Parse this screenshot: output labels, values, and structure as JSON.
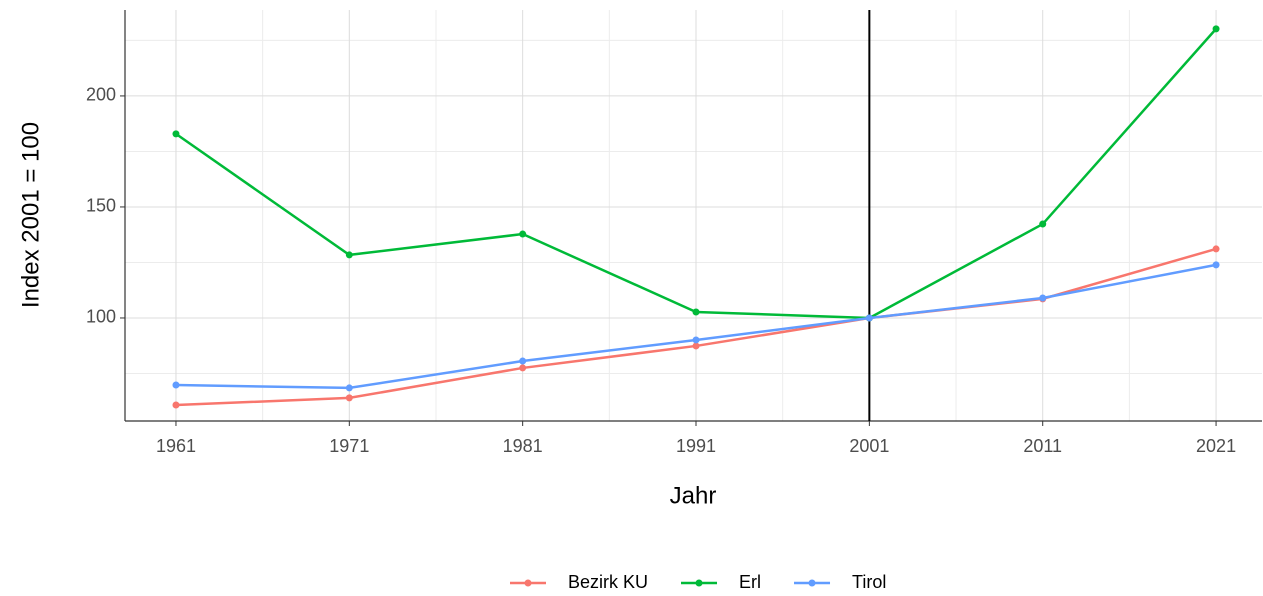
{
  "chart_data": {
    "type": "line",
    "x_label": "Jahr",
    "y_label": "Index 2001 = 100",
    "x": [
      1961,
      1971,
      1981,
      1991,
      2001,
      2011,
      2021
    ],
    "series": [
      {
        "name": "Bezirk KU",
        "color": "#F8766D",
        "values": [
          60.8,
          64.0,
          77.5,
          87.4,
          100,
          108.6,
          131.1
        ]
      },
      {
        "name": "Erl",
        "color": "#00BA38",
        "values": [
          182.9,
          128.4,
          137.8,
          102.7,
          100,
          142.3,
          230.2
        ]
      },
      {
        "name": "Tirol",
        "color": "#619CFF",
        "values": [
          69.8,
          68.5,
          80.6,
          90.1,
          100,
          109.0,
          123.9
        ]
      }
    ],
    "xlim": [
      1958.06,
      2023.65
    ],
    "ylim": [
      53.6,
      238.7
    ],
    "xticks": [
      1961,
      1971,
      1981,
      1991,
      2001,
      2011,
      2021
    ],
    "yticks": [
      100,
      150,
      200
    ],
    "vline": 2001,
    "grid": true,
    "legend": "bottom"
  }
}
